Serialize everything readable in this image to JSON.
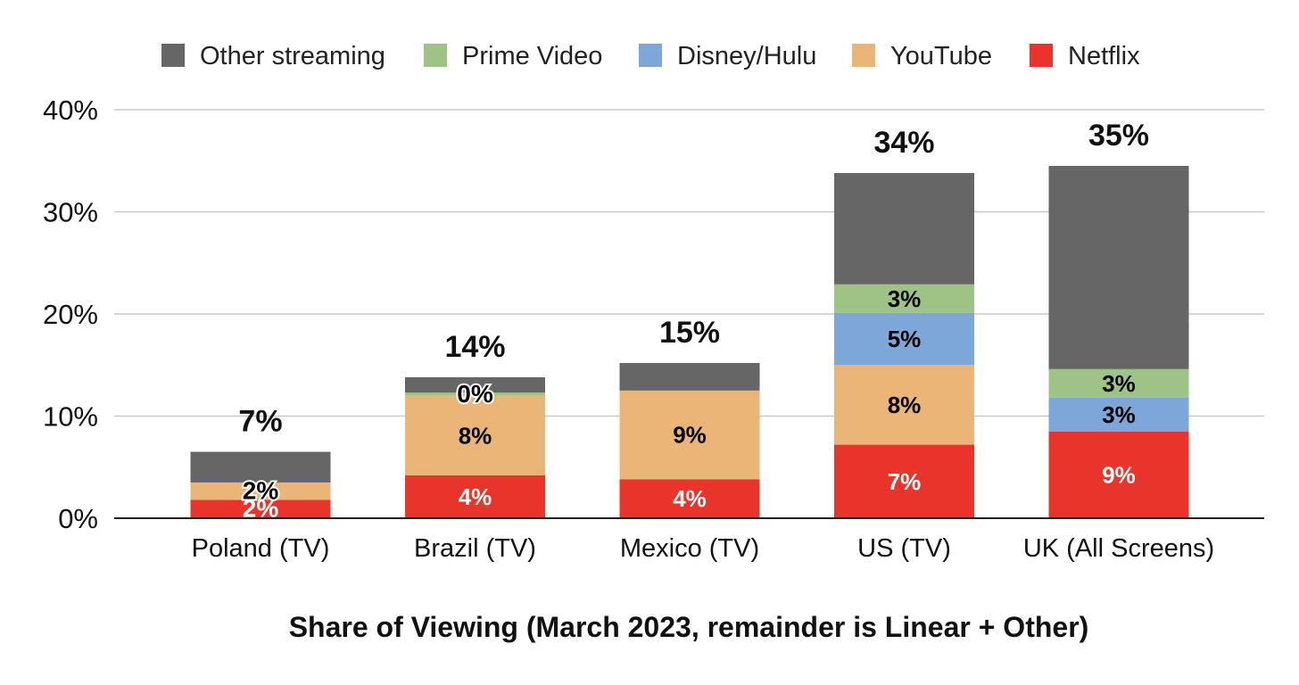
{
  "chart_data": {
    "type": "bar",
    "stacked": true,
    "title": "",
    "xlabel": "Share of Viewing (March 2023, remainder is Linear + Other)",
    "ylabel": "",
    "ylim": [
      0,
      40
    ],
    "yticks": [
      0,
      10,
      20,
      30,
      40
    ],
    "ytick_labels": [
      "0%",
      "10%",
      "20%",
      "30%",
      "40%"
    ],
    "grid": true,
    "legend_position": "top",
    "categories": [
      "Poland (TV)",
      "Brazil (TV)",
      "Mexico (TV)",
      "US (TV)",
      "UK (All Screens)"
    ],
    "series": [
      {
        "name": "Netflix",
        "color": "#e8342a",
        "values": [
          1.8,
          4.2,
          3.8,
          7.2,
          8.5
        ],
        "labels": [
          "2%",
          "4%",
          "4%",
          "7%",
          "9%"
        ],
        "label_color": "#ffffff"
      },
      {
        "name": "YouTube",
        "color": "#ebb578",
        "values": [
          1.7,
          7.8,
          8.7,
          7.8,
          0
        ],
        "labels": [
          "2%",
          "8%",
          "9%",
          "8%",
          ""
        ],
        "label_color": "#000000"
      },
      {
        "name": "Disney/Hulu",
        "color": "#7da7d9",
        "values": [
          0,
          0,
          0,
          5.1,
          3.3
        ],
        "labels": [
          "",
          "",
          "",
          "5%",
          "3%"
        ],
        "label_color": "#000000"
      },
      {
        "name": "Prime Video",
        "color": "#9dc485",
        "values": [
          0,
          0.3,
          0,
          2.8,
          2.8
        ],
        "labels": [
          "",
          "0%",
          "",
          "3%",
          "3%"
        ],
        "label_color": "#000000"
      },
      {
        "name": "Other streaming",
        "color": "#666666",
        "values": [
          3.0,
          1.5,
          2.7,
          10.9,
          19.9
        ],
        "labels": [
          "",
          "",
          "",
          "",
          ""
        ],
        "label_color": "#ffffff"
      }
    ],
    "legend_order": [
      "Other streaming",
      "Prime Video",
      "Disney/Hulu",
      "YouTube",
      "Netflix"
    ],
    "totals": [
      6.5,
      13.8,
      15.2,
      33.8,
      34.5
    ],
    "total_labels": [
      "7%",
      "14%",
      "15%",
      "34%",
      "35%"
    ]
  }
}
